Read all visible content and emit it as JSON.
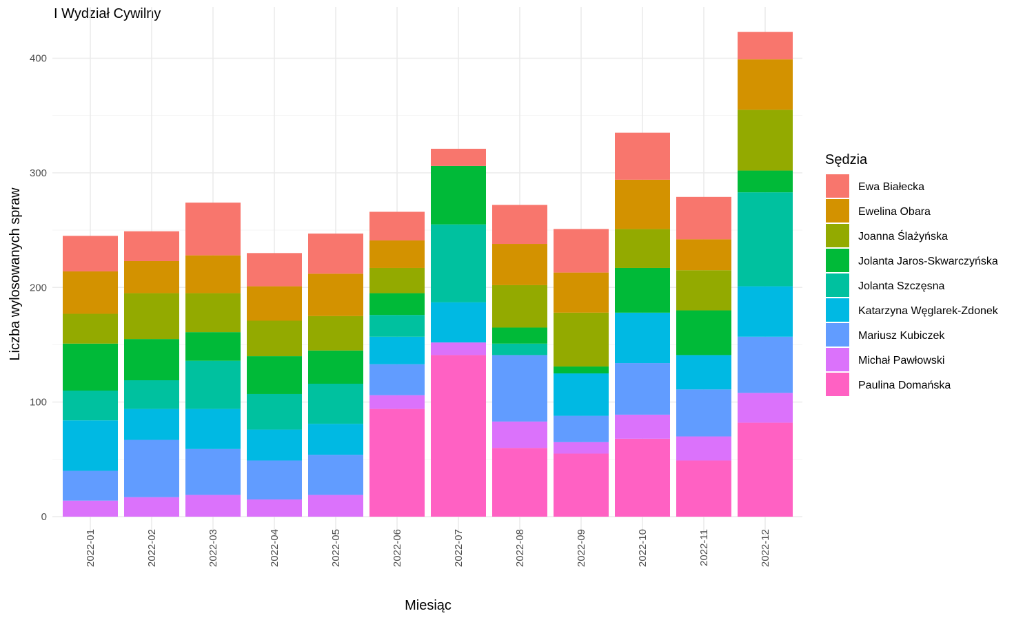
{
  "chart_data": {
    "type": "bar",
    "stacked": true,
    "title": "I Wydział Cywilny",
    "xlabel": "Miesiąc",
    "ylabel": "Liczba wylosowanych spraw",
    "ylim": [
      0,
      430
    ],
    "yticks": [
      0,
      100,
      200,
      300,
      400
    ],
    "grid": true,
    "legend_title": "Sędzia",
    "legend_position": "right",
    "categories": [
      "2022-01",
      "2022-02",
      "2022-03",
      "2022-04",
      "2022-05",
      "2022-06",
      "2022-07",
      "2022-08",
      "2022-09",
      "2022-10",
      "2022-11",
      "2022-12"
    ],
    "series": [
      {
        "name": "Paulina Domańska",
        "color": "#FF61C3",
        "values": [
          0,
          0,
          0,
          0,
          0,
          94,
          141,
          60,
          55,
          68,
          49,
          82
        ]
      },
      {
        "name": "Michał Pawłowski",
        "color": "#DB72FB",
        "values": [
          14,
          17,
          19,
          15,
          19,
          12,
          11,
          23,
          10,
          21,
          21,
          26
        ]
      },
      {
        "name": "Mariusz Kubiczek",
        "color": "#619CFF",
        "values": [
          26,
          50,
          40,
          34,
          35,
          27,
          0,
          58,
          23,
          45,
          41,
          49
        ]
      },
      {
        "name": "Katarzyna Węglarek-Zdonek",
        "color": "#00B9E3",
        "values": [
          44,
          27,
          35,
          27,
          27,
          24,
          35,
          0,
          37,
          44,
          30,
          44
        ]
      },
      {
        "name": "Jolanta Szczęsna",
        "color": "#00C19F",
        "values": [
          26,
          25,
          42,
          31,
          35,
          19,
          68,
          10,
          0,
          0,
          0,
          82
        ]
      },
      {
        "name": "Jolanta Jaros-Skwarczyńska",
        "color": "#00BA38",
        "values": [
          41,
          36,
          25,
          33,
          29,
          19,
          51,
          14,
          6,
          39,
          39,
          19
        ]
      },
      {
        "name": "Joanna Ślażyńska",
        "color": "#93AA00",
        "values": [
          26,
          40,
          34,
          31,
          30,
          22,
          0,
          37,
          47,
          34,
          35,
          53
        ]
      },
      {
        "name": "Ewelina Obara",
        "color": "#D39200",
        "values": [
          37,
          28,
          33,
          30,
          37,
          24,
          0,
          36,
          35,
          43,
          27,
          44
        ]
      },
      {
        "name": "Ewa Białecka",
        "color": "#F8766D",
        "values": [
          31,
          26,
          46,
          29,
          35,
          25,
          15,
          34,
          38,
          41,
          37,
          24
        ]
      }
    ]
  }
}
